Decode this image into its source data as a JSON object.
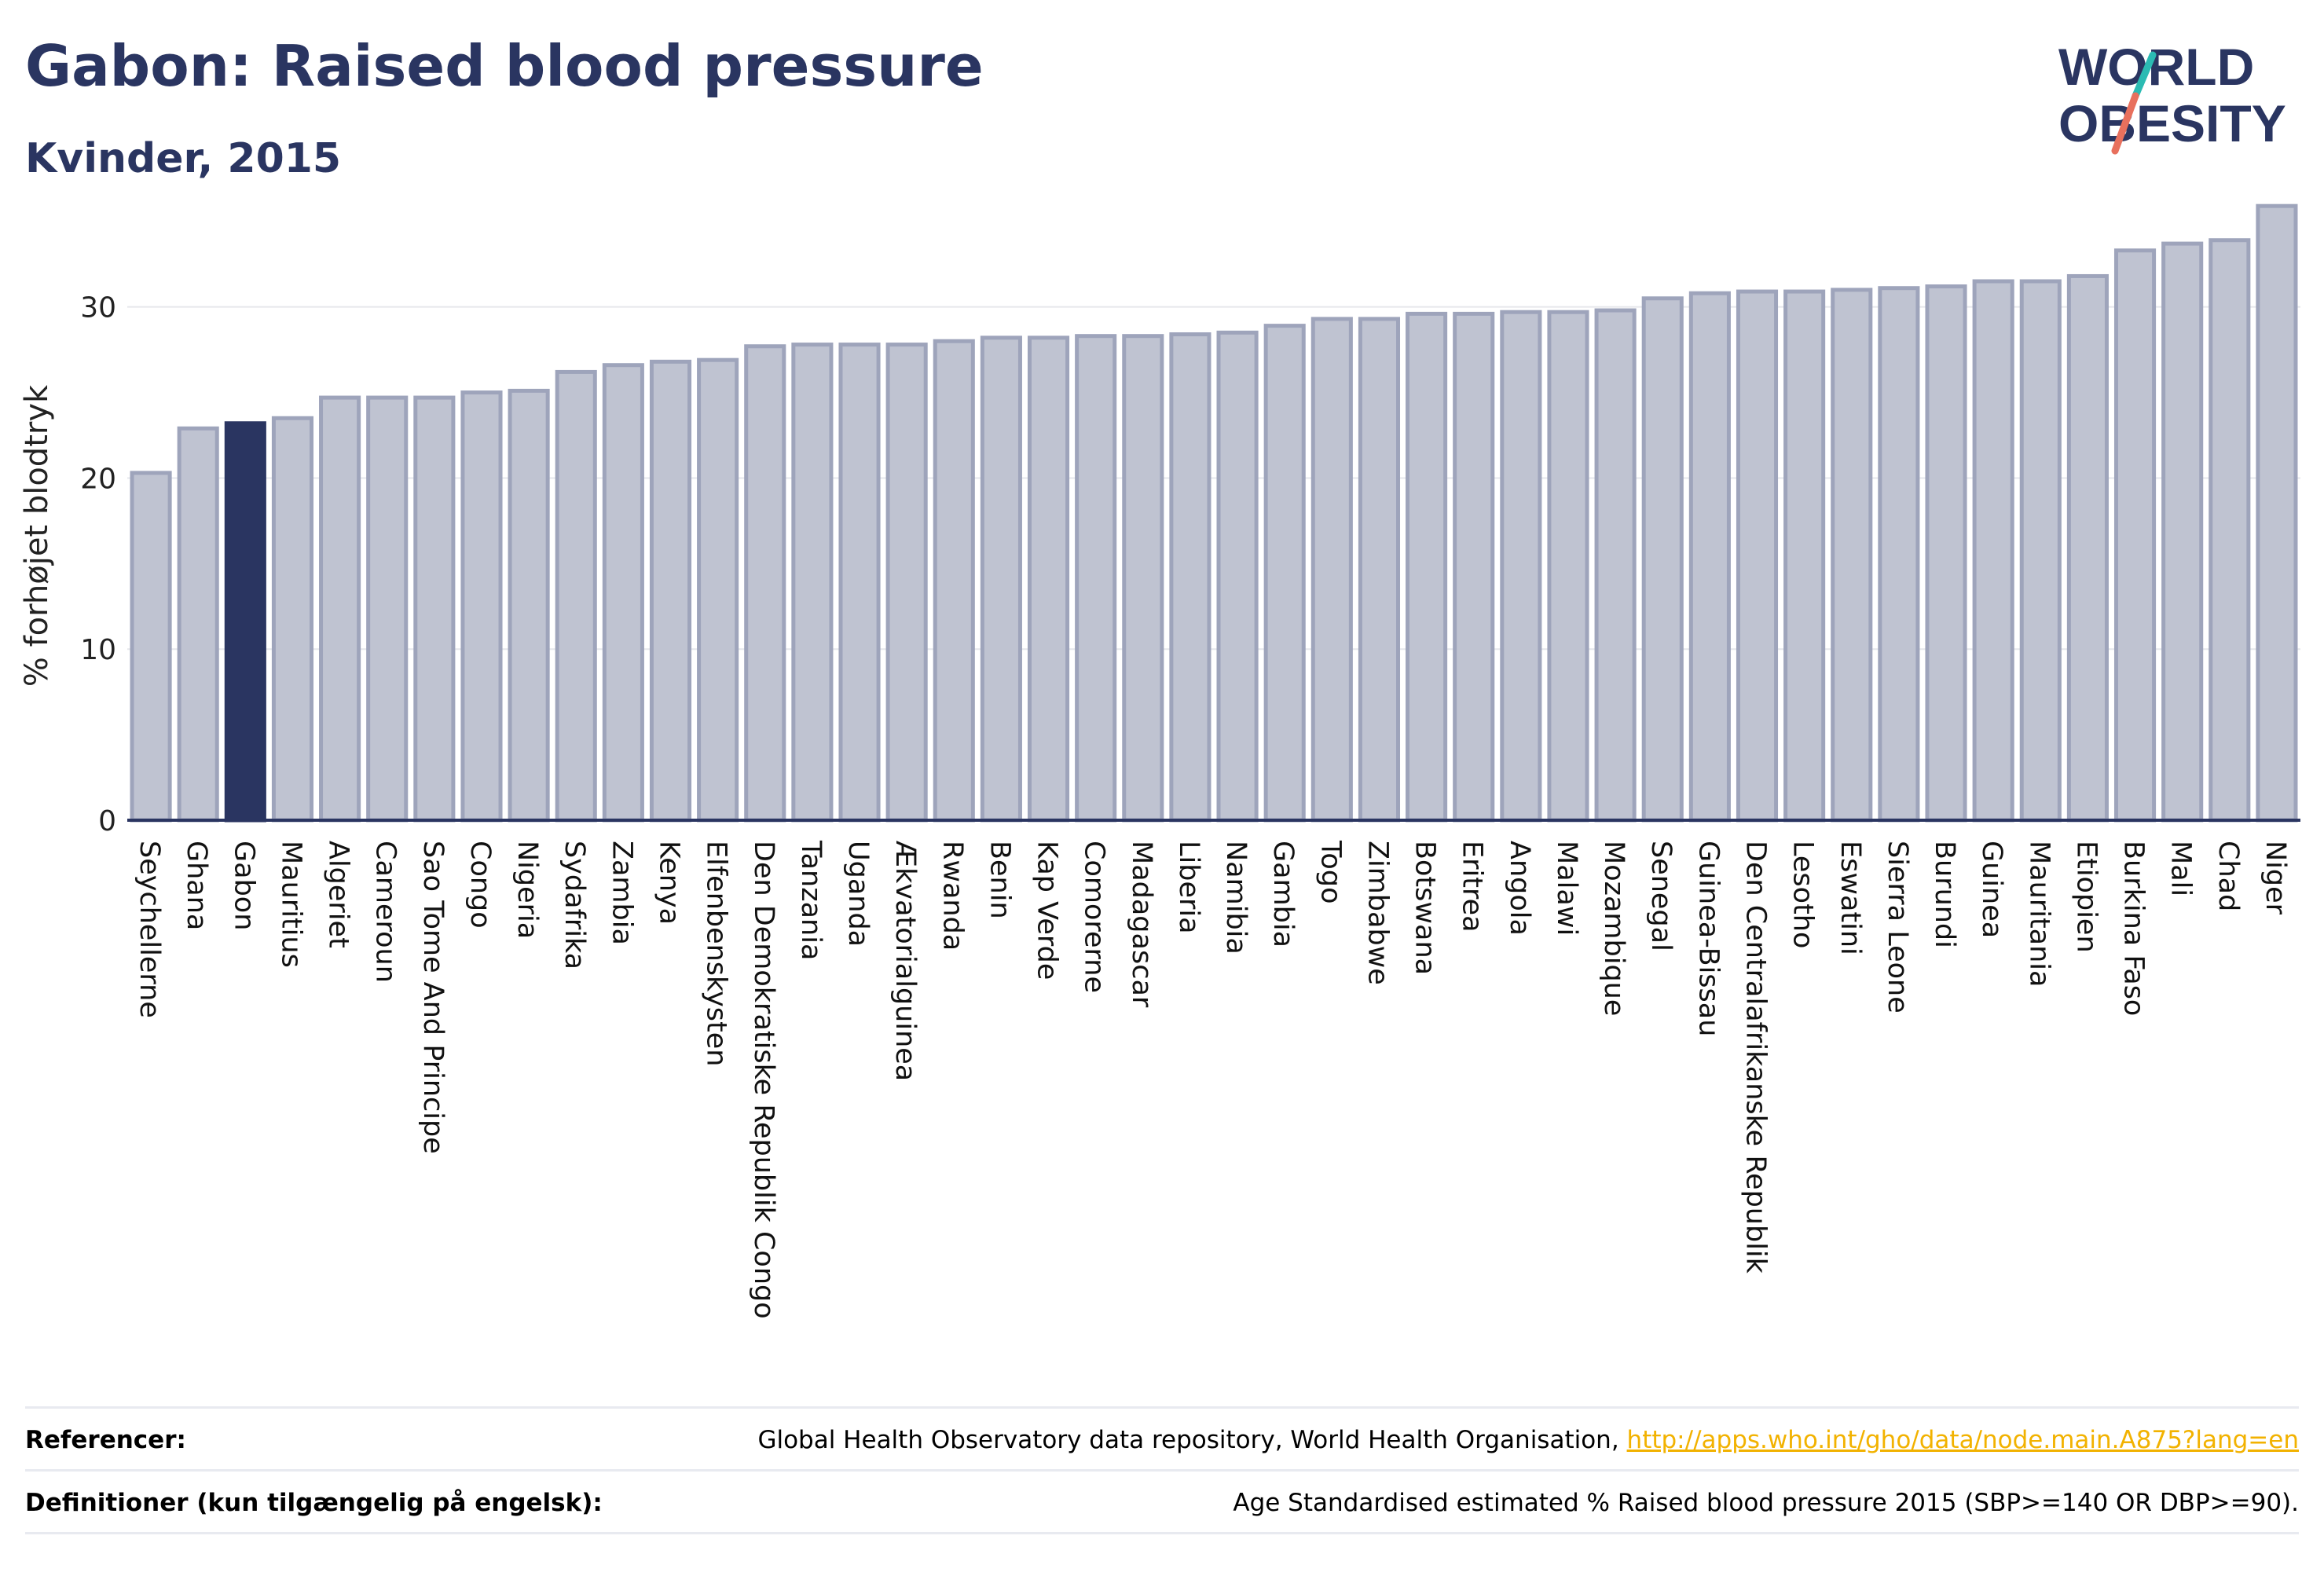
{
  "header": {
    "title": "Gabon: Raised blood pressure",
    "subtitle": "Kvinder, 2015"
  },
  "logo": {
    "line1": "WORLD",
    "line2": "OBESITY",
    "icon": "world-obesity-logo",
    "accent_colors": [
      "#2bbbb3",
      "#e8705d"
    ]
  },
  "colors": {
    "bar": "#bfc3d1",
    "bar_border": "#9ea4bb",
    "highlight": "#2a3561",
    "axis": "#2a3561",
    "grid": "#e6e7ec",
    "link": "#f2b200"
  },
  "chart_data": {
    "type": "bar",
    "title": "Gabon: Raised blood pressure",
    "subtitle": "Kvinder, 2015",
    "xlabel": "",
    "ylabel": "% forhøjet blodtryk",
    "ylim": [
      0,
      36
    ],
    "yticks": [
      0,
      10,
      20,
      30
    ],
    "grid": true,
    "highlight": "Gabon",
    "categories": [
      "Seychellerne",
      "Ghana",
      "Gabon",
      "Mauritius",
      "Algeriet",
      "Cameroun",
      "Sao Tome And Principe",
      "Congo",
      "Nigeria",
      "Sydafrika",
      "Zambia",
      "Kenya",
      "Elfenbenskysten",
      "Den Demokratiske Republik Congo",
      "Tanzania",
      "Uganda",
      "Ækvatorialguinea",
      "Rwanda",
      "Benin",
      "Kap Verde",
      "Comorerne",
      "Madagascar",
      "Liberia",
      "Namibia",
      "Gambia",
      "Togo",
      "Zimbabwe",
      "Botswana",
      "Eritrea",
      "Angola",
      "Malawi",
      "Mozambique",
      "Senegal",
      "Guinea-Bissau",
      "Den Centralafrikanske Republik",
      "Lesotho",
      "Eswatini",
      "Sierra Leone",
      "Burundi",
      "Guinea",
      "Mauritania",
      "Etiopien",
      "Burkina Faso",
      "Mali",
      "Chad",
      "Niger"
    ],
    "values": [
      20.3,
      22.9,
      23.2,
      23.5,
      24.7,
      24.7,
      24.7,
      25.0,
      25.1,
      26.2,
      26.6,
      26.8,
      26.9,
      27.7,
      27.8,
      27.8,
      27.8,
      28.0,
      28.2,
      28.2,
      28.3,
      28.3,
      28.4,
      28.5,
      28.9,
      29.3,
      29.3,
      29.6,
      29.6,
      29.7,
      29.7,
      29.8,
      30.5,
      30.8,
      30.9,
      30.9,
      31.0,
      31.1,
      31.2,
      31.5,
      31.5,
      31.8,
      33.3,
      33.7,
      33.9,
      35.9
    ]
  },
  "footer": {
    "references_label": "Referencer:",
    "references_text": "Global Health Observatory data repository, World Health Organisation, ",
    "references_link": "http://apps.who.int/gho/data/node.main.A875?lang=en",
    "definitions_label": "Definitioner (kun tilgængelig på engelsk):",
    "definitions_text": "Age Standardised estimated % Raised blood pressure 2015 (SBP>=140 OR DBP>=90)."
  }
}
